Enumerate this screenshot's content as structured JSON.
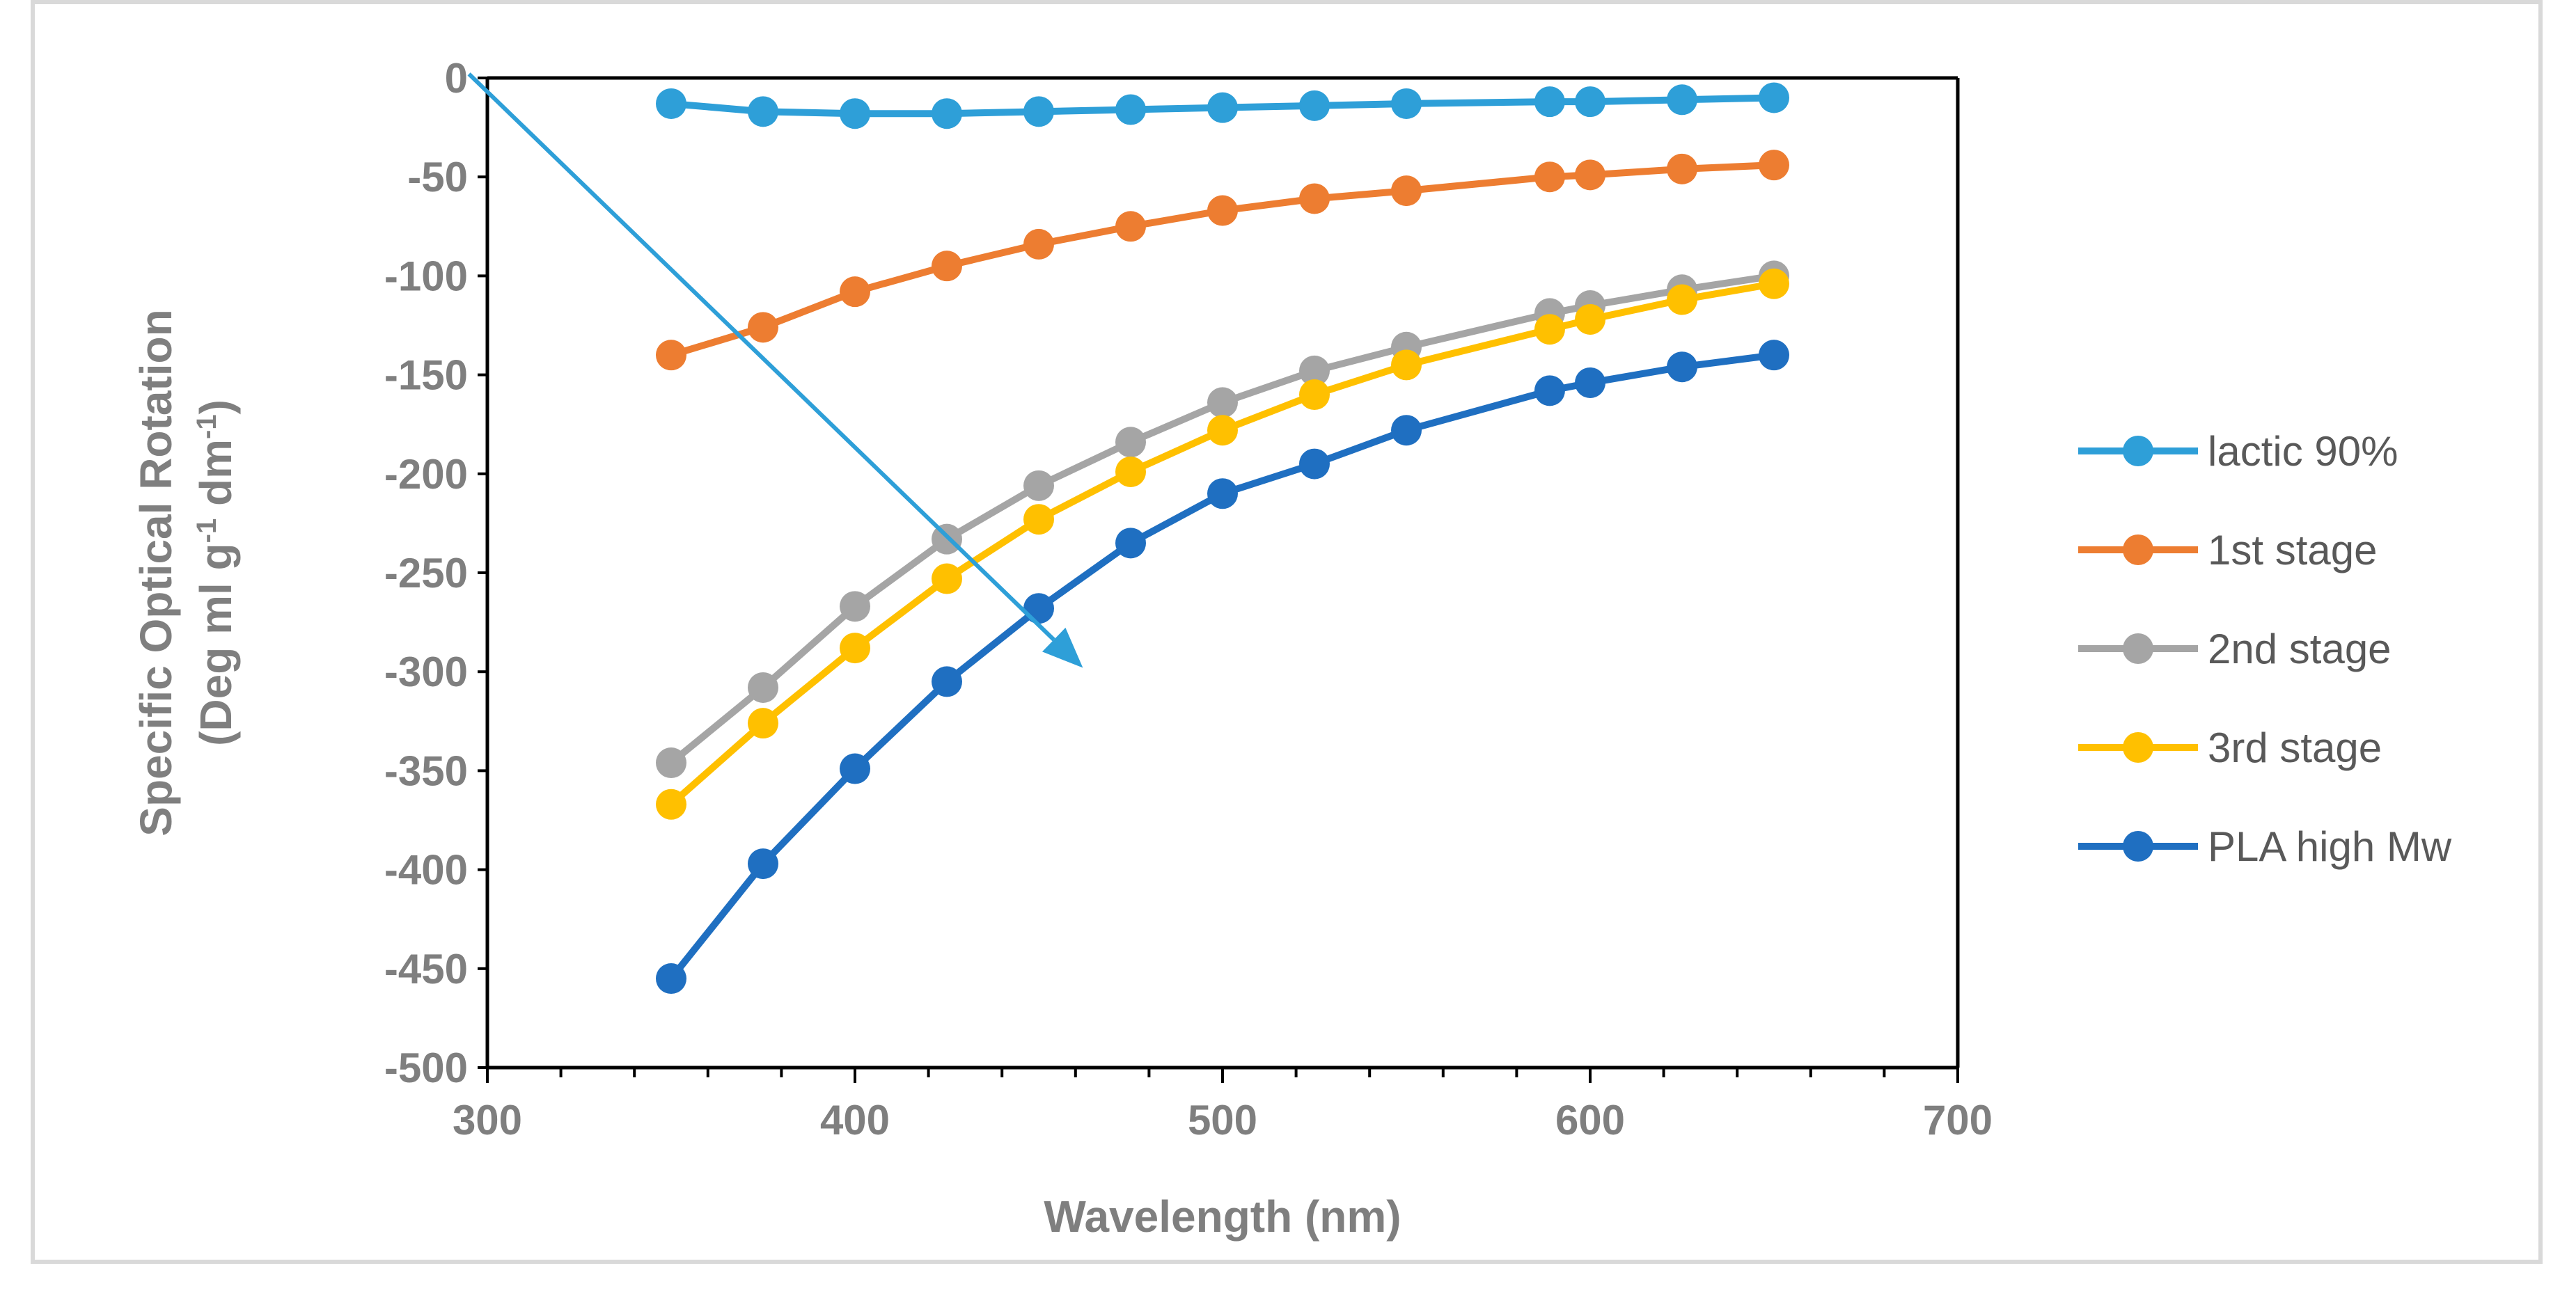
{
  "chart_data": {
    "type": "line",
    "title": "",
    "xlabel": "Wavelength (nm)",
    "ylabel": {
      "line1": "Specific Optical Rotation",
      "line2_prefix": "(Deg ml  g",
      "sup1": "-1",
      "line2_mid": " dm",
      "sup2": "-1",
      "line2_suffix": ")"
    },
    "xlim": [
      300,
      700
    ],
    "ylim": [
      -500,
      0
    ],
    "x_major_step": 100,
    "x_minor_step": 20,
    "y_major_step": 50,
    "grid": false,
    "legend_position": "right",
    "x_ticks": [
      "300",
      "400",
      "500",
      "600",
      "700"
    ],
    "y_ticks": [
      "0",
      "-50",
      "-100",
      "-150",
      "-200",
      "-250",
      "-300",
      "-350",
      "-400",
      "-450",
      "-500"
    ],
    "x": [
      350,
      375,
      400,
      425,
      450,
      475,
      500,
      525,
      550,
      589,
      600,
      625,
      650
    ],
    "series": [
      {
        "name": "lactic 90%",
        "color": "#2e9fd8",
        "values": [
          -13,
          -17,
          -18,
          -18,
          -17,
          -16,
          -15,
          -14,
          -13,
          -12,
          -12,
          -11,
          -10
        ]
      },
      {
        "name": "1st stage",
        "color": "#ed7d31",
        "values": [
          -140,
          -126,
          -108,
          -95,
          -84,
          -75,
          -67,
          -61,
          -57,
          -50,
          -49,
          -46,
          -44
        ]
      },
      {
        "name": "2nd stage",
        "color": "#a5a5a5",
        "values": [
          -346,
          -308,
          -267,
          -233,
          -206,
          -184,
          -164,
          -148,
          -136,
          -119,
          -115,
          -107,
          -100
        ]
      },
      {
        "name": "3rd stage",
        "color": "#ffc000",
        "values": [
          -367,
          -326,
          -288,
          -253,
          -223,
          -199,
          -178,
          -160,
          -145,
          -127,
          -122,
          -112,
          -104
        ]
      },
      {
        "name": "PLA high Mw",
        "color": "#1f6fc1",
        "values": [
          -455,
          -397,
          -349,
          -305,
          -268,
          -235,
          -210,
          -195,
          -178,
          -158,
          -154,
          -146,
          -140
        ]
      }
    ],
    "annotations": [
      {
        "type": "arrow",
        "from": [
          295,
          2
        ],
        "to": [
          462,
          -298
        ],
        "color": "#2e9fd8",
        "meaning": "direction of decreasing specific optical rotation"
      }
    ]
  }
}
